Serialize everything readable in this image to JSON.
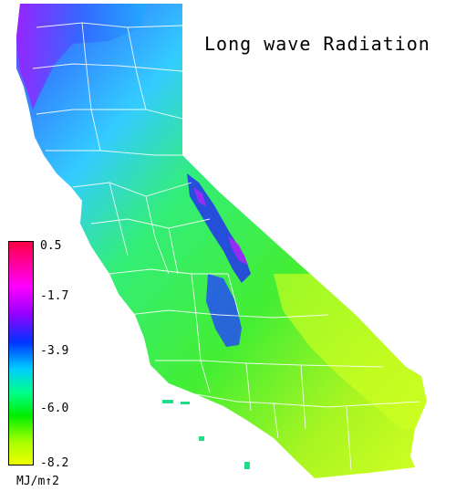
{
  "title": "Long wave Radiation",
  "legend": {
    "ticks": [
      "0.5",
      "-1.7",
      "-3.9",
      "-6.0",
      "-8.2"
    ],
    "units": "MJ/m↑2",
    "colors": [
      "#ff0044",
      "#ff00ff",
      "#9900ff",
      "#0033ff",
      "#00ccff",
      "#00ff88",
      "#00ee00",
      "#aaff00",
      "#eeff00"
    ]
  },
  "map_colors": {
    "north_coast": "#7a2cff",
    "north": "#39b0ff",
    "central": "#33ee66",
    "south_east": "#c5ff22",
    "sierra": "#2a30ff",
    "county_lines": "#ffffff"
  }
}
